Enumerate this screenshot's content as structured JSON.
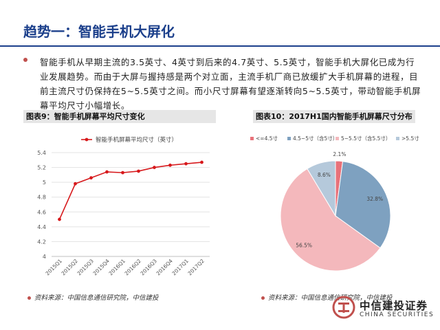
{
  "slide": {
    "title": "趋势一：智能手机大屏化",
    "body_text": "智能手机从早期主流的3.5英寸、4英寸到后来的4.7英寸、5.5英寸，智能手机大屏化已成为行业发展趋势。而由于大屏与握持感是两个对立面，主流手机厂商已放缓扩大手机屏幕的进程，目前主流尺寸仍保持在5~5.5英寸之间。而小尺寸屏幕有望逐渐转向5~5.5英寸，带动智能手机屏幕平均尺寸小幅增长。",
    "source_left": "资料来源：中国信息通信研究院，中信建投",
    "source_right": "资料来源：中国信息通信研究院，中信建投"
  },
  "logo": {
    "name_cn": "中信建投证券",
    "name_en": "CHINA SECURITIES",
    "accent": "#c0504d"
  },
  "colors": {
    "title": "#1b3f8b",
    "line": "#d7191c",
    "pie": [
      "#e8727a",
      "#7ea1c0",
      "#f4b8bc",
      "#b5c9db"
    ]
  },
  "chart_data": [
    {
      "type": "line",
      "figure_label": "图表9：智能手机屏幕平均尺寸变化",
      "categories": [
        "2015Q1",
        "2015Q2",
        "2015Q3",
        "2015Q4",
        "2016Q1",
        "2016Q2",
        "2016Q3",
        "2016Q4",
        "2017Q1",
        "2017Q2"
      ],
      "series": [
        {
          "name": "智能手机屏幕平均尺寸（英寸）",
          "values": [
            4.5,
            4.98,
            5.06,
            5.14,
            5.13,
            5.15,
            5.2,
            5.23,
            5.25,
            5.27
          ]
        }
      ],
      "ylim": [
        4,
        5.4
      ],
      "yticks": [
        "4",
        "4.2",
        "4.4",
        "4.6",
        "4.8",
        "5",
        "5.2",
        "5.4"
      ],
      "legend_position": "top",
      "grid": true
    },
    {
      "type": "pie",
      "figure_label": "图表10：2017H1国内智能手机屏幕尺寸分布",
      "slices": [
        {
          "label": "<=4.5寸",
          "value": 2.1,
          "value_label": "2.1%"
        },
        {
          "label": "4.5~5寸（含5寸）",
          "value": 32.8,
          "value_label": "32.8%"
        },
        {
          "label": "5~5.5寸（含5.5寸）",
          "value": 56.5,
          "value_label": "56.5%"
        },
        {
          "label": ">5.5寸",
          "value": 8.6,
          "value_label": "8.6%"
        }
      ],
      "legend_position": "top"
    }
  ]
}
